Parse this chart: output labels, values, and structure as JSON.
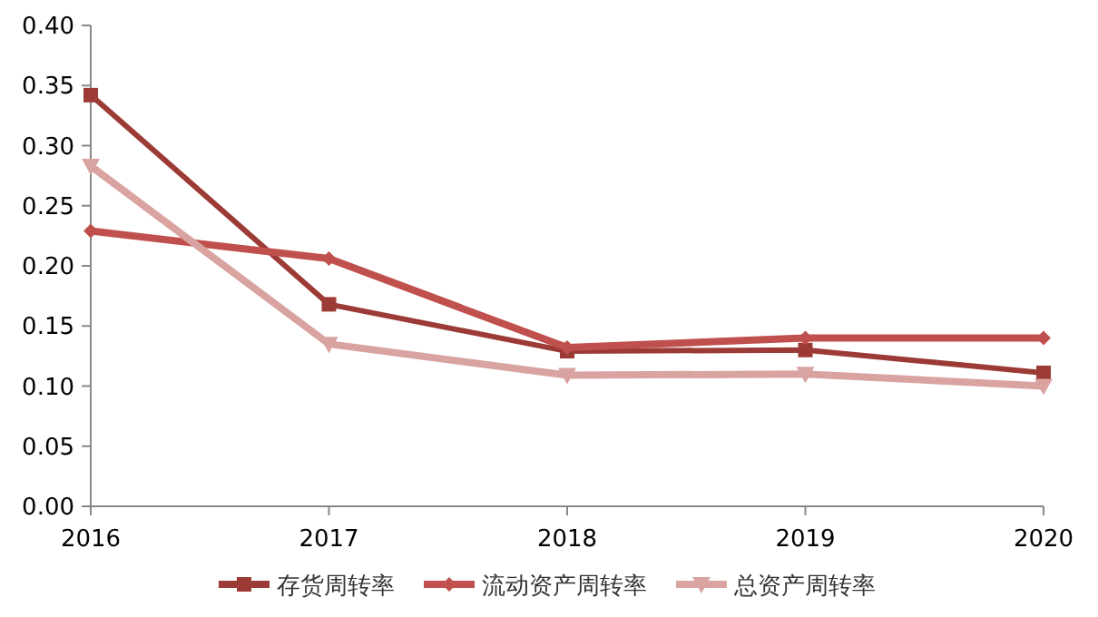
{
  "chart_data": {
    "type": "line",
    "x": [
      2016,
      2017,
      2018,
      2019,
      2020
    ],
    "xlim": [
      2016,
      2020
    ],
    "xticks": [
      2016,
      2017,
      2018,
      2019,
      2020
    ],
    "ylim": [
      0,
      0.4
    ],
    "yticks": [
      {
        "value": 0,
        "label": "0.00"
      },
      {
        "value": 0.05,
        "label": "0.05"
      },
      {
        "value": 0.1,
        "label": "0.10"
      },
      {
        "value": 0.15,
        "label": "0.15"
      },
      {
        "value": 0.2,
        "label": "0.20"
      },
      {
        "value": 0.25,
        "label": "0.25"
      },
      {
        "value": 0.3,
        "label": "0.30"
      },
      {
        "value": 0.35,
        "label": "0.35"
      },
      {
        "value": 0.4,
        "label": "0.40"
      }
    ],
    "grid": false,
    "legend": "bottom",
    "line_style": "solid",
    "series": [
      {
        "name": "存货周转率",
        "color": "#9c3b36",
        "marker": "square",
        "values": [
          0.342,
          0.168,
          0.129,
          0.13,
          0.111
        ]
      },
      {
        "name": "流动资产周转率",
        "color": "#c0504d",
        "marker": "diamond",
        "values": [
          0.229,
          0.206,
          0.132,
          0.14,
          0.14
        ]
      },
      {
        "name": "总资产周转率",
        "color": "#d9a3a1",
        "marker": "triangle",
        "values": [
          0.283,
          0.135,
          0.109,
          0.11,
          0.1
        ]
      }
    ]
  }
}
